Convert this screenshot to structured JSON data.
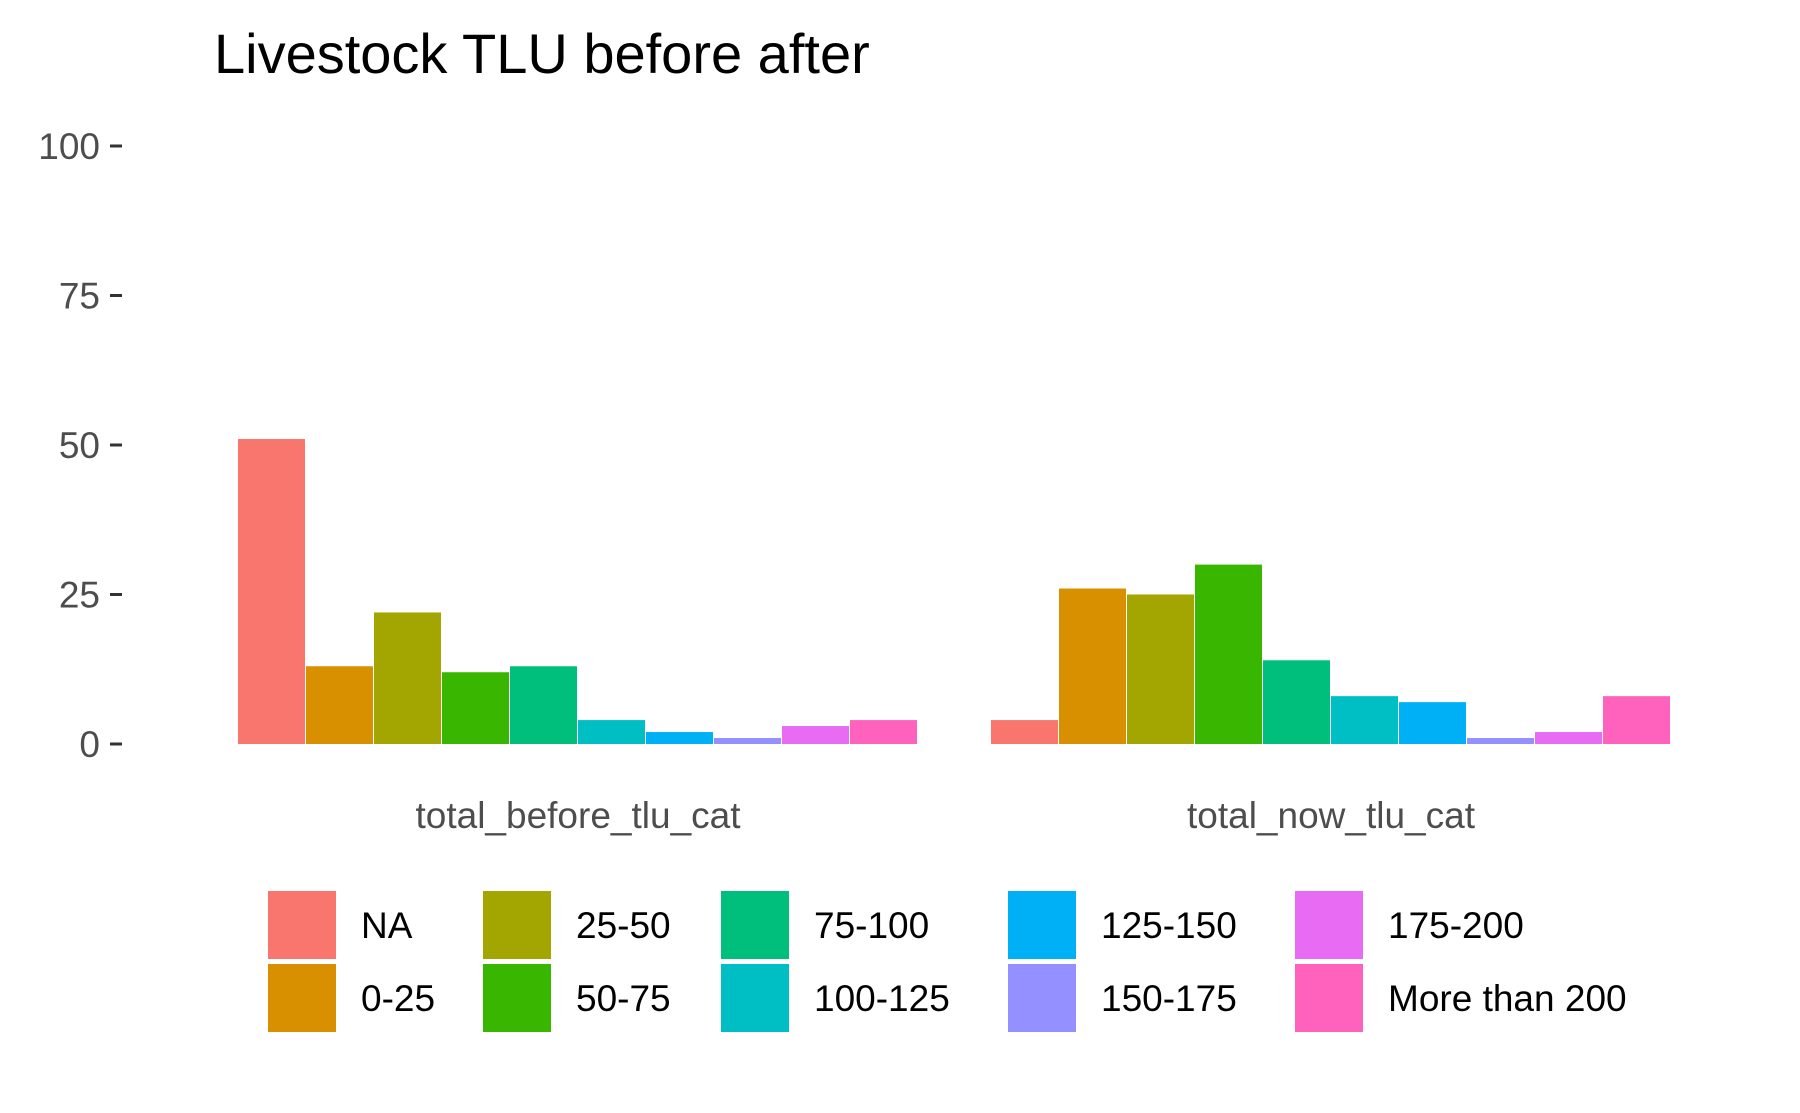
{
  "chart_data": {
    "type": "bar",
    "title": "Livestock TLU before after",
    "xlabel": "",
    "ylabel": "",
    "ylim": [
      0,
      100
    ],
    "yticks": [
      0,
      25,
      50,
      75,
      100
    ],
    "grid": false,
    "legend_position": "bottom",
    "categories": [
      "total_before_tlu_cat",
      "total_now_tlu_cat"
    ],
    "series": [
      {
        "name": "NA",
        "color": "#F8766D",
        "values": [
          51,
          4
        ]
      },
      {
        "name": "0-25",
        "color": "#D89000",
        "values": [
          13,
          26
        ]
      },
      {
        "name": "25-50",
        "color": "#A3A500",
        "values": [
          22,
          25
        ]
      },
      {
        "name": "50-75",
        "color": "#39B600",
        "values": [
          12,
          30
        ]
      },
      {
        "name": "75-100",
        "color": "#00BF7D",
        "values": [
          13,
          14
        ]
      },
      {
        "name": "100-125",
        "color": "#00BFC4",
        "values": [
          4,
          8
        ]
      },
      {
        "name": "125-150",
        "color": "#00B0F6",
        "values": [
          2,
          7
        ]
      },
      {
        "name": "150-175",
        "color": "#9590FF",
        "values": [
          1,
          1
        ]
      },
      {
        "name": "175-200",
        "color": "#E76BF3",
        "values": [
          3,
          2
        ]
      },
      {
        "name": "More than 200",
        "color": "#FF62BC",
        "values": [
          4,
          8
        ]
      }
    ]
  }
}
